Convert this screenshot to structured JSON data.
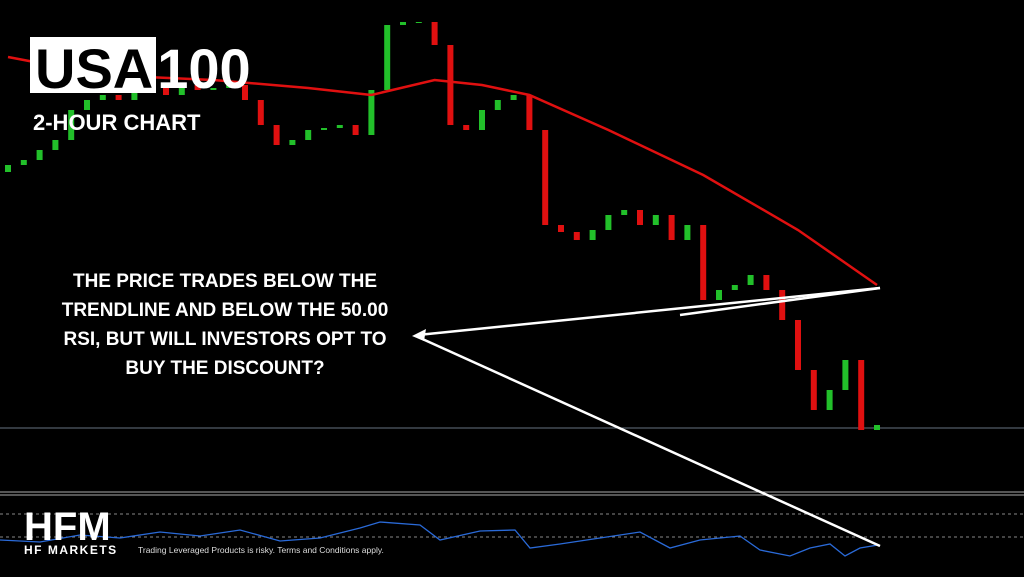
{
  "chart_data": {
    "type": "candlestick",
    "title": "USA100",
    "subtitle": "2-HOUR CHART",
    "annotation": [
      "THE PRICE TRADES BELOW THE",
      "TRENDLINE AND BELOW THE 50.00",
      "RSI, BUT WILL INVESTORS OPT TO",
      "BUY THE DISCOUNT?"
    ],
    "ylim": [
      0,
      577
    ],
    "open": [
      405,
      412,
      417,
      427,
      437,
      467,
      477,
      482,
      477,
      485,
      489,
      482,
      492,
      487,
      489,
      492,
      477,
      452,
      432,
      437,
      447,
      449,
      452,
      442,
      487,
      552,
      555,
      555,
      532,
      452,
      447,
      467,
      477,
      482,
      447,
      352,
      345,
      337,
      347,
      362,
      367,
      352,
      362,
      337,
      352,
      277,
      287,
      292,
      302,
      287,
      257,
      207,
      167,
      187,
      217,
      147
    ],
    "close": [
      412,
      417,
      427,
      437,
      467,
      477,
      482,
      477,
      485,
      489,
      482,
      492,
      487,
      489,
      492,
      477,
      452,
      432,
      437,
      447,
      449,
      452,
      442,
      487,
      552,
      555,
      555,
      532,
      452,
      447,
      467,
      477,
      482,
      447,
      352,
      345,
      337,
      347,
      362,
      367,
      352,
      362,
      337,
      352,
      277,
      287,
      292,
      302,
      287,
      257,
      207,
      167,
      187,
      217,
      147,
      152
    ],
    "up_color": "#22c02a",
    "down_color": "#e01010",
    "ma": {
      "color": "#e01010",
      "x": [
        0,
        6,
        13,
        19,
        23,
        27,
        30,
        33,
        38,
        44,
        50,
        55
      ],
      "values": [
        520,
        502,
        497,
        489,
        482,
        497,
        492,
        482,
        447,
        402,
        347,
        292
      ]
    },
    "price_line": 149,
    "footer": {
      "logo": "HFM",
      "brand": "HF MARKETS",
      "disclaimer": "Trading Leveraged Products is risky. Terms and Conditions apply."
    }
  }
}
